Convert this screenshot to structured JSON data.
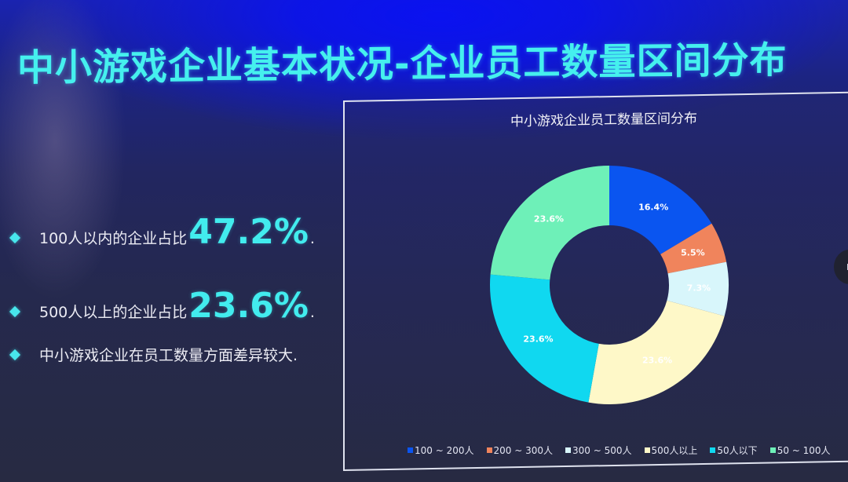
{
  "slide": {
    "title": "中小游戏企业基本状况-企业员工数量区间分布",
    "title_color": "#45f0ee"
  },
  "bullets": [
    {
      "text": "100人以内的企业占比",
      "highlight": "47.2%",
      "suffix": "."
    },
    {
      "text": "500人以上的企业占比",
      "highlight": "23.6%",
      "suffix": "."
    },
    {
      "text": "中小游戏企业在员工数量方面差异较大.",
      "highlight": "",
      "suffix": ""
    }
  ],
  "chart_data": {
    "type": "pie",
    "subtype": "donut",
    "title": "中小游戏企业员工数量区间分布",
    "categories": [
      "100 ~ 200人",
      "200 ~ 300人",
      "300 ~ 500人",
      "500人以上",
      "50人以下",
      "50 ~ 100人"
    ],
    "values": [
      16.4,
      5.5,
      7.3,
      23.6,
      23.6,
      23.6
    ],
    "labels": [
      "16.4%",
      "5.5%",
      "7.3%",
      "23.6%",
      "23.6%",
      "23.6%"
    ],
    "colors": [
      "#0a55f0",
      "#f0845c",
      "#d8f6fb",
      "#fef8c8",
      "#10d8f0",
      "#6ef0b8"
    ],
    "unit": "%",
    "legend_position": "bottom",
    "start_angle_deg": 0,
    "direction": "clockwise",
    "inner_radius_ratio": 0.5
  },
  "side_control": {
    "icon": "pause-icon"
  }
}
